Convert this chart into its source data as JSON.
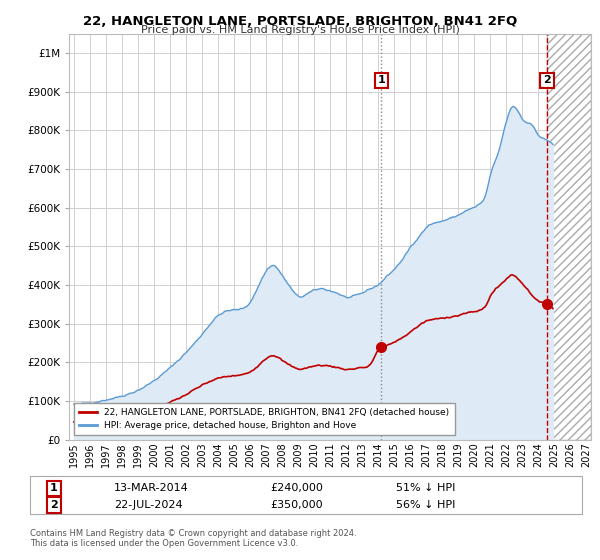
{
  "title": "22, HANGLETON LANE, PORTSLADE, BRIGHTON, BN41 2FQ",
  "subtitle": "Price paid vs. HM Land Registry's House Price Index (HPI)",
  "legend_line1": "22, HANGLETON LANE, PORTSLADE, BRIGHTON, BN41 2FQ (detached house)",
  "legend_line2": "HPI: Average price, detached house, Brighton and Hove",
  "sale1_date": "13-MAR-2014",
  "sale1_price": 240000,
  "sale1_label": "51% ↓ HPI",
  "sale2_date": "22-JUL-2024",
  "sale2_price": 350000,
  "sale2_label": "56% ↓ HPI",
  "copyright": "Contains HM Land Registry data © Crown copyright and database right 2024.\nThis data is licensed under the Open Government Licence v3.0.",
  "hpi_color": "#5b9bd5",
  "hpi_fill_color": "#deeaf5",
  "price_color": "#c00000",
  "background_color": "#ffffff",
  "grid_color": "#d0d0d0",
  "ylim": [
    0,
    1050000
  ],
  "xlim_start": 1994.7,
  "xlim_end": 2027.3,
  "sale1_x": 2014.2,
  "sale2_x": 2024.55
}
